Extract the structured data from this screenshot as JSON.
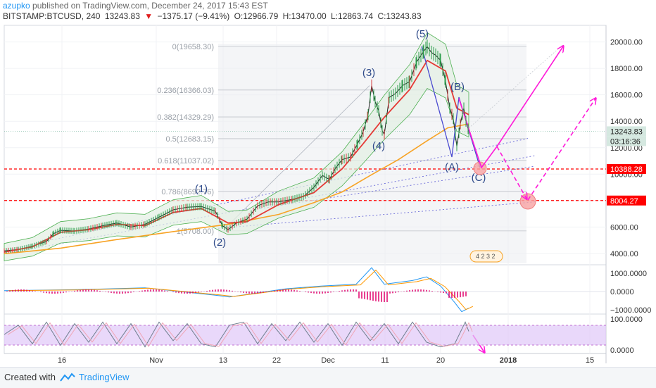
{
  "header": {
    "author": "azupko",
    "published": "published on TradingView.com, December 24, 2017 15:43 EST",
    "symbol": "BITSTAMP:BTCUSD, 240",
    "last": "13243.83",
    "change_arrow": "▼",
    "change": "−1375.17 (−9.41%)",
    "open": "O:12966.79",
    "high": "H:13470.00",
    "low": "L:12863.74",
    "close": "C:13243.83"
  },
  "footer": {
    "created_with": "Created with",
    "brand": "TradingView"
  },
  "colors": {
    "ma_red": "#e53935",
    "ma_orange": "#f7a325",
    "band_green": "#4caf50",
    "band_fill": "#e3efe3",
    "pink": "#ff1ad9",
    "wave_blue": "#4a4ad0",
    "level_red": "#ff0000",
    "macd_blue": "#2196f3",
    "macd_orange": "#ff9800",
    "hist_red": "#e0006b",
    "stoch_fill": "#e0c8f8",
    "stoch_k": "#6f7f8f",
    "stoch_d": "#f0a5b5"
  },
  "chart_data": {
    "type": "line",
    "title": "BITSTAMP:BTCUSD, 240",
    "xlabel": "",
    "ylabel": "",
    "x_ticks": [
      "16",
      "Nov",
      "13",
      "22",
      "Dec",
      "11",
      "20",
      "2018",
      "15"
    ],
    "y_ticks": [
      "4000.00",
      "6000.00",
      "8000.00",
      "10000.00",
      "12000.00",
      "14000.00",
      "16000.00",
      "18000.00",
      "20000.00"
    ],
    "ylim": [
      3000,
      21500
    ],
    "grid": true,
    "price_labels": {
      "last": "13243.83",
      "countdown": "03:16:36",
      "level_1": "10388.28",
      "level_2": "8004.27"
    },
    "horizontal_levels": [
      10388.28,
      8004.27
    ],
    "fib_levels": [
      {
        "label": "0(19658.30)",
        "value": 19658.3
      },
      {
        "label": "0.236(16366.03)",
        "value": 16366.03
      },
      {
        "label": "0.382(14329.29)",
        "value": 14329.29
      },
      {
        "label": "0.5(12683.15)",
        "value": 12683.15
      },
      {
        "label": "0.618(11037.02)",
        "value": 11037.02
      },
      {
        "label": "0.786(8692.76)",
        "value": 8692.76
      },
      {
        "label": "1(5708.00)",
        "value": 5708.0
      }
    ],
    "wave_labels": [
      {
        "label": "(1)",
        "value": 7800
      },
      {
        "label": "(2)",
        "value": 5600
      },
      {
        "label": "(3)",
        "value": 17500
      },
      {
        "label": "(4)",
        "value": 11800
      },
      {
        "label": "(5)",
        "value": 20200
      },
      {
        "label": "(A)",
        "value": 10300
      },
      {
        "label": "(B)",
        "value": 16300
      },
      {
        "label": "(C)",
        "value": 9600
      }
    ],
    "series": [
      {
        "name": "BTCUSD",
        "points": [
          [
            0,
            4200
          ],
          [
            20,
            4300
          ],
          [
            40,
            4550
          ],
          [
            60,
            4900
          ],
          [
            70,
            5500
          ],
          [
            80,
            5750
          ],
          [
            100,
            5700
          ],
          [
            120,
            5850
          ],
          [
            140,
            6100
          ],
          [
            160,
            6300
          ],
          [
            180,
            6000
          ],
          [
            200,
            6200
          ],
          [
            220,
            6750
          ],
          [
            240,
            7300
          ],
          [
            260,
            7500
          ],
          [
            280,
            7550
          ],
          [
            300,
            7200
          ],
          [
            310,
            6100
          ],
          [
            318,
            5800
          ],
          [
            330,
            6300
          ],
          [
            345,
            6600
          ],
          [
            360,
            7600
          ],
          [
            375,
            7900
          ],
          [
            390,
            7900
          ],
          [
            410,
            8100
          ],
          [
            425,
            8300
          ],
          [
            440,
            9000
          ],
          [
            452,
            9900
          ],
          [
            462,
            9600
          ],
          [
            470,
            10400
          ],
          [
            480,
            11100
          ],
          [
            492,
            11300
          ],
          [
            502,
            12300
          ],
          [
            510,
            13200
          ],
          [
            517,
            14500
          ],
          [
            522,
            16700
          ],
          [
            527,
            15500
          ],
          [
            532,
            14800
          ],
          [
            537,
            13300
          ],
          [
            540,
            13000
          ],
          [
            547,
            15800
          ],
          [
            556,
            16100
          ],
          [
            566,
            16700
          ],
          [
            576,
            17000
          ],
          [
            586,
            18500
          ],
          [
            596,
            19300
          ],
          [
            601,
            19650
          ],
          [
            607,
            19200
          ],
          [
            613,
            19000
          ],
          [
            620,
            18600
          ],
          [
            627,
            17000
          ],
          [
            633,
            15000
          ],
          [
            638,
            14200
          ],
          [
            643,
            12100
          ],
          [
            648,
            13800
          ],
          [
            653,
            15000
          ],
          [
            656,
            14000
          ],
          [
            660,
            13244
          ]
        ]
      },
      {
        "name": "MA fast",
        "points": [
          [
            0,
            4100
          ],
          [
            40,
            4500
          ],
          [
            80,
            5600
          ],
          [
            120,
            5800
          ],
          [
            160,
            6200
          ],
          [
            200,
            6100
          ],
          [
            240,
            7100
          ],
          [
            280,
            7400
          ],
          [
            318,
            6300
          ],
          [
            345,
            6400
          ],
          [
            390,
            7700
          ],
          [
            440,
            8600
          ],
          [
            480,
            10400
          ],
          [
            510,
            12300
          ],
          [
            540,
            14300
          ],
          [
            576,
            16400
          ],
          [
            601,
            18600
          ],
          [
            627,
            17800
          ],
          [
            643,
            15000
          ],
          [
            660,
            14500
          ]
        ]
      },
      {
        "name": "MA slow",
        "points": [
          [
            0,
            3980
          ],
          [
            80,
            4400
          ],
          [
            160,
            5050
          ],
          [
            240,
            5650
          ],
          [
            318,
            6200
          ],
          [
            390,
            6950
          ],
          [
            440,
            7850
          ],
          [
            480,
            8650
          ],
          [
            520,
            9900
          ],
          [
            560,
            11100
          ],
          [
            600,
            12500
          ],
          [
            630,
            13500
          ],
          [
            660,
            13800
          ]
        ]
      },
      {
        "name": "MACD",
        "points": [
          [
            0,
            50
          ],
          [
            100,
            100
          ],
          [
            200,
            200
          ],
          [
            300,
            -200
          ],
          [
            320,
            -300
          ],
          [
            400,
            150
          ],
          [
            450,
            300
          ],
          [
            500,
            400
          ],
          [
            522,
            1300
          ],
          [
            540,
            400
          ],
          [
            580,
            600
          ],
          [
            600,
            800
          ],
          [
            620,
            300
          ],
          [
            640,
            -600
          ],
          [
            650,
            -1100
          ],
          [
            660,
            -900
          ]
        ]
      },
      {
        "name": "Stochastic",
        "points": [
          [
            0,
            50
          ],
          [
            20,
            80
          ],
          [
            40,
            20
          ],
          [
            60,
            90
          ],
          [
            80,
            15
          ],
          [
            100,
            85
          ],
          [
            120,
            25
          ],
          [
            140,
            90
          ],
          [
            160,
            20
          ],
          [
            180,
            85
          ],
          [
            200,
            10
          ],
          [
            220,
            90
          ],
          [
            240,
            30
          ],
          [
            260,
            85
          ],
          [
            280,
            20
          ],
          [
            300,
            10
          ],
          [
            320,
            80
          ],
          [
            340,
            90
          ],
          [
            360,
            20
          ],
          [
            380,
            85
          ],
          [
            400,
            30
          ],
          [
            420,
            90
          ],
          [
            440,
            25
          ],
          [
            460,
            85
          ],
          [
            480,
            15
          ],
          [
            500,
            90
          ],
          [
            520,
            30
          ],
          [
            540,
            85
          ],
          [
            560,
            20
          ],
          [
            580,
            90
          ],
          [
            600,
            25
          ],
          [
            620,
            10
          ],
          [
            640,
            20
          ],
          [
            655,
            90
          ],
          [
            660,
            60
          ]
        ]
      }
    ],
    "macd_ticks": [
      "1000.0000",
      "0.0000",
      "−1000.0000"
    ],
    "stoch_ticks": [
      "100.0000",
      "0.0000"
    ]
  }
}
